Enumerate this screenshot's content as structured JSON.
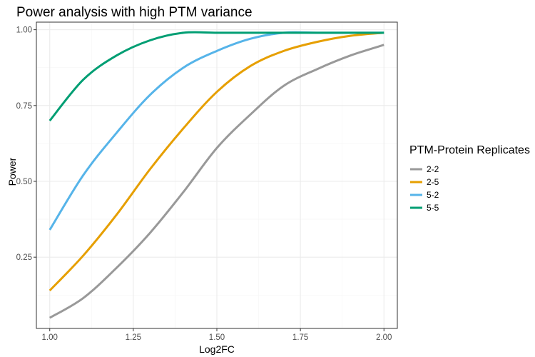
{
  "chart_data": {
    "type": "line",
    "title": "Power analysis with high PTM variance",
    "xlabel": "Log2FC",
    "ylabel": "Power",
    "xlim": [
      0.96,
      2.04
    ],
    "ylim": [
      0.015,
      1.025
    ],
    "x_ticks": [
      1.0,
      1.25,
      1.5,
      1.75,
      2.0
    ],
    "x_tick_labels": [
      "1.00",
      "1.25",
      "1.50",
      "1.75",
      "2.00"
    ],
    "y_ticks": [
      0.25,
      0.5,
      0.75,
      1.0
    ],
    "y_tick_labels": [
      "0.25",
      "0.50",
      "0.75",
      "1.00"
    ],
    "grid": true,
    "legend": {
      "title": "PTM-Protein Replicates",
      "position": "right"
    },
    "x": [
      1.0,
      1.1,
      1.2,
      1.3,
      1.4,
      1.5,
      1.6,
      1.7,
      1.8,
      1.9,
      2.0
    ],
    "series": [
      {
        "name": "2-2",
        "color": "#999999",
        "values": [
          0.05,
          0.115,
          0.215,
          0.33,
          0.465,
          0.61,
          0.72,
          0.815,
          0.87,
          0.915,
          0.95
        ]
      },
      {
        "name": "2-5",
        "color": "#E69F00",
        "values": [
          0.14,
          0.255,
          0.39,
          0.54,
          0.675,
          0.795,
          0.88,
          0.93,
          0.96,
          0.98,
          0.99
        ]
      },
      {
        "name": "5-2",
        "color": "#56B4E9",
        "values": [
          0.34,
          0.52,
          0.66,
          0.785,
          0.875,
          0.93,
          0.97,
          0.99,
          0.99,
          0.99,
          0.99
        ]
      },
      {
        "name": "5-5",
        "color": "#009E73",
        "values": [
          0.7,
          0.835,
          0.915,
          0.965,
          0.99,
          0.99,
          0.99,
          0.99,
          0.99,
          0.99,
          0.99
        ]
      }
    ]
  }
}
